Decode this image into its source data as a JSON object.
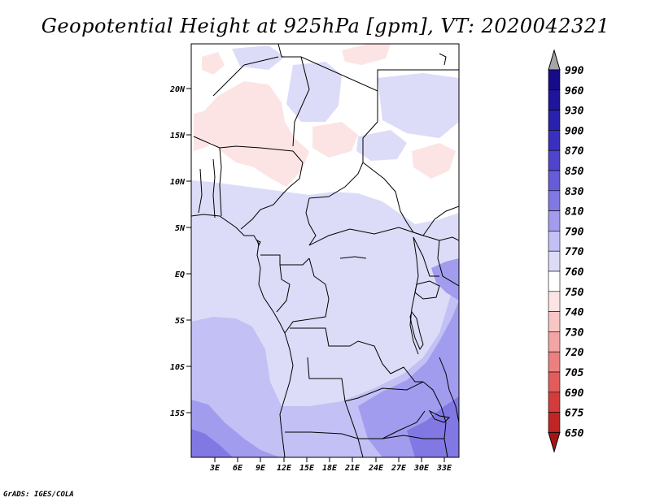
{
  "title": "Geopotential Height at 925hPa [gpm], VT: 2020042321",
  "credit": "GrADS: IGES/COLA",
  "map": {
    "lat_labels": [
      "20N",
      "15N",
      "10N",
      "5N",
      "EQ",
      "5S",
      "10S",
      "15S"
    ],
    "lon_labels": [
      "3E",
      "6E",
      "9E",
      "12E",
      "15E",
      "18E",
      "21E",
      "24E",
      "27E",
      "30E",
      "33E"
    ]
  },
  "colorbar": {
    "levels": [
      "990",
      "960",
      "930",
      "900",
      "870",
      "850",
      "830",
      "810",
      "790",
      "770",
      "760",
      "750",
      "740",
      "730",
      "720",
      "705",
      "690",
      "675",
      "650"
    ],
    "colors": {
      "over": "#a6a6a6",
      "c990": "#160c8a",
      "c960": "#1f149c",
      "c930": "#2a20ae",
      "c900": "#3a30c0",
      "c870": "#5044cc",
      "c850": "#665cd8",
      "c830": "#8278e4",
      "c810": "#a29cee",
      "c790": "#c2c0f4",
      "c770": "#dcdcf8",
      "c760": "#ffffff",
      "c750": "#fde4e4",
      "c740": "#f9c6c6",
      "c730": "#f3a4a4",
      "c720": "#ec8080",
      "c705": "#e25c5c",
      "c690": "#d43c3c",
      "c675": "#c02424",
      "c650": "#a81414"
    }
  }
}
